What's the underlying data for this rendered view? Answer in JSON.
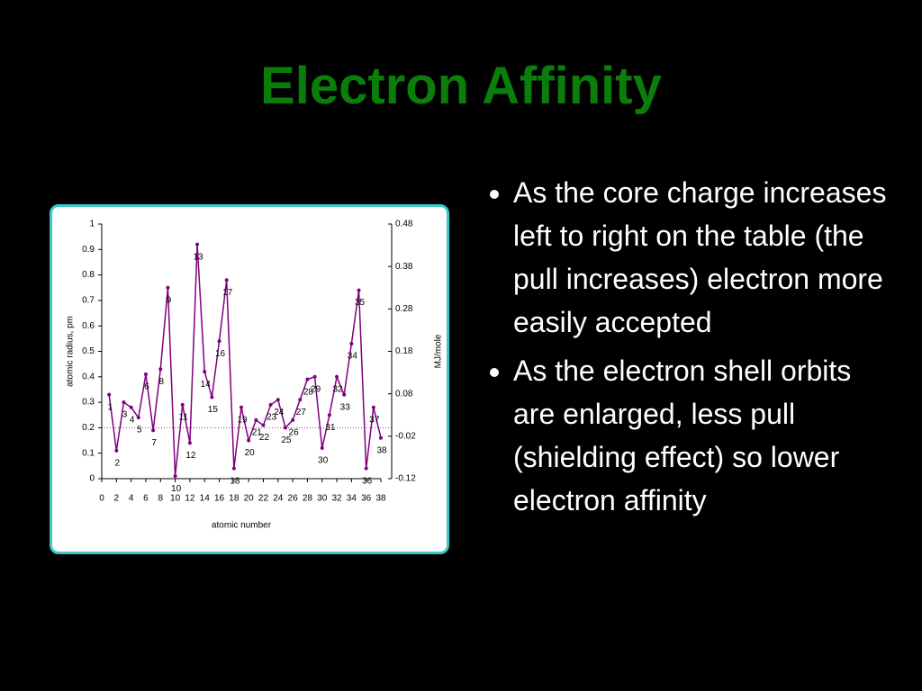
{
  "title": "Electron Affinity",
  "bullets": [
    "As the core charge increases left to right on the table (the pull increases) electron more easily accepted",
    "As the electron shell orbits are enlarged, less pull (shielding effect) so lower electron affinity"
  ],
  "chart_data": {
    "type": "line",
    "x_label": "atomic number",
    "y_label": "atomic radius, pm",
    "y2_label": "MJ/mole",
    "x": [
      1,
      2,
      3,
      4,
      5,
      6,
      7,
      8,
      9,
      10,
      11,
      12,
      13,
      14,
      15,
      16,
      17,
      18,
      19,
      20,
      21,
      22,
      23,
      24,
      25,
      26,
      27,
      28,
      29,
      30,
      31,
      32,
      33,
      34,
      35,
      36,
      37,
      38
    ],
    "series": [
      {
        "name": "atomic radius",
        "color": "#800080",
        "values": [
          0.33,
          0.11,
          0.3,
          0.28,
          0.24,
          0.41,
          0.19,
          0.43,
          0.75,
          0.01,
          0.29,
          0.14,
          0.92,
          0.42,
          0.32,
          0.54,
          0.78,
          0.04,
          0.28,
          0.15,
          0.23,
          0.21,
          0.29,
          0.31,
          0.2,
          0.23,
          0.31,
          0.39,
          0.4,
          0.12,
          0.25,
          0.4,
          0.33,
          0.53,
          0.74,
          0.04,
          0.28,
          0.16
        ]
      }
    ],
    "xlim": [
      0,
      38
    ],
    "xticks": [
      0,
      2,
      4,
      6,
      8,
      10,
      12,
      14,
      16,
      18,
      20,
      22,
      24,
      26,
      28,
      30,
      32,
      34,
      36,
      38
    ],
    "ylim": [
      0,
      1
    ],
    "yticks": [
      0,
      0.1,
      0.2,
      0.3,
      0.4,
      0.5,
      0.6,
      0.7,
      0.8,
      0.9,
      1
    ],
    "y2lim": [
      -0.12,
      0.48
    ],
    "y2ticks": [
      0.48,
      0.38,
      0.28,
      0.18,
      0.08,
      -0.02,
      -0.12
    ],
    "y2_reference": 0
  }
}
